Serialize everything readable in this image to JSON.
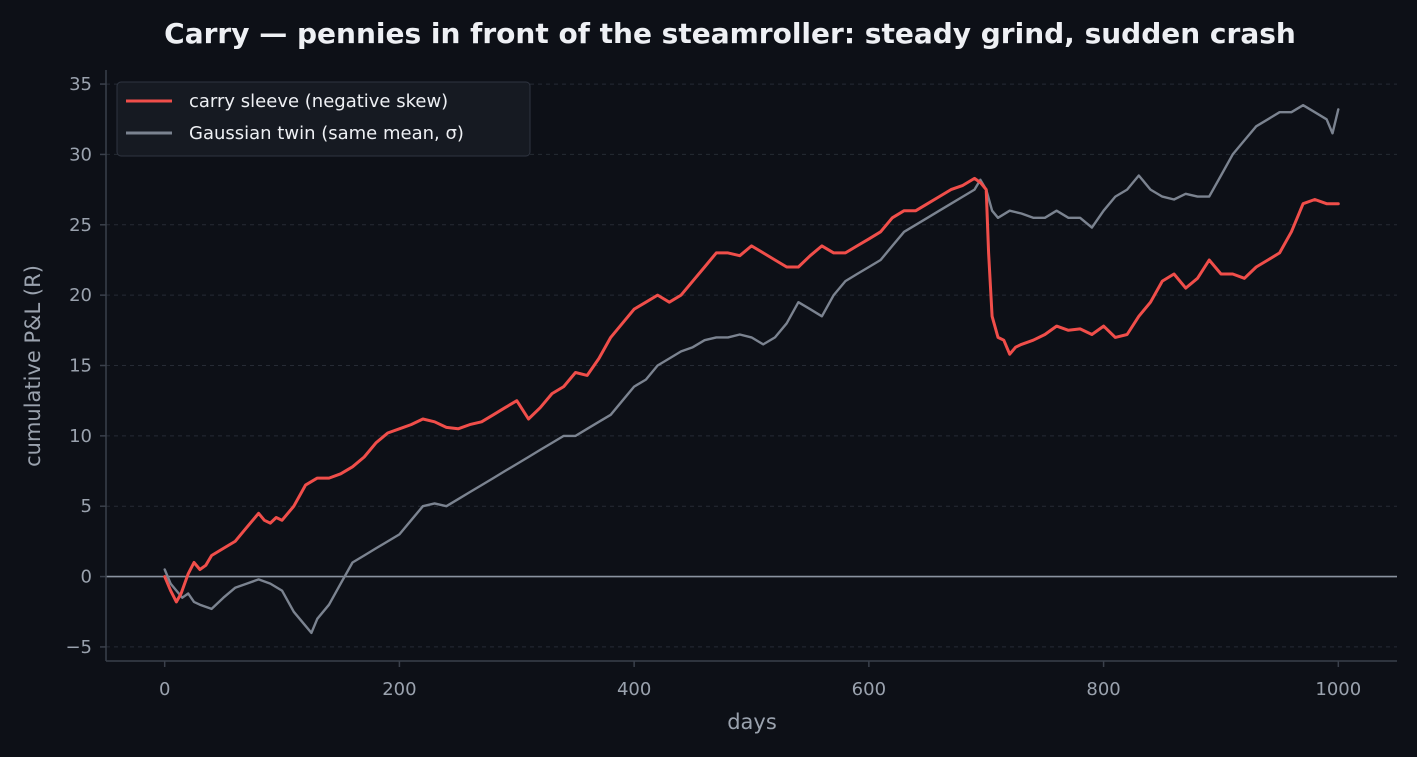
{
  "chart_data": {
    "type": "line",
    "title": "Carry — pennies in front of the steamroller: steady grind, sudden crash",
    "xlabel": "days",
    "ylabel": "cumulative P&L (R)",
    "xlim": [
      -50,
      1050
    ],
    "ylim": [
      -6,
      36
    ],
    "xticks": [
      0,
      200,
      400,
      600,
      800,
      1000
    ],
    "xtick_labels": [
      "0",
      "200",
      "400",
      "600",
      "800",
      "1000"
    ],
    "yticks": [
      -5,
      0,
      5,
      10,
      15,
      20,
      25,
      30,
      35
    ],
    "ytick_labels": [
      "−5",
      "0",
      "5",
      "10",
      "15",
      "20",
      "25",
      "30",
      "35"
    ],
    "grid": "horizontal dashed",
    "zero_line": 0,
    "legend_position": "top-left",
    "series": [
      {
        "name": "carry sleeve (negative skew)",
        "color": "#f04e4a",
        "x": [
          0,
          5,
          10,
          14,
          20,
          25,
          30,
          35,
          40,
          50,
          60,
          70,
          80,
          85,
          90,
          95,
          100,
          110,
          120,
          130,
          140,
          150,
          160,
          170,
          180,
          190,
          200,
          210,
          220,
          230,
          240,
          250,
          260,
          270,
          280,
          290,
          300,
          310,
          320,
          330,
          340,
          350,
          360,
          370,
          380,
          390,
          400,
          410,
          420,
          430,
          440,
          450,
          460,
          470,
          480,
          490,
          500,
          510,
          520,
          530,
          540,
          550,
          560,
          570,
          580,
          590,
          600,
          610,
          620,
          630,
          640,
          650,
          660,
          670,
          680,
          690,
          695,
          700,
          702,
          705,
          710,
          715,
          720,
          725,
          730,
          740,
          750,
          760,
          770,
          780,
          790,
          800,
          810,
          820,
          830,
          840,
          850,
          860,
          870,
          880,
          890,
          900,
          910,
          920,
          930,
          940,
          950,
          960,
          970,
          980,
          990,
          1000
        ],
        "y": [
          0,
          -1.0,
          -1.8,
          -1.2,
          0.2,
          1.0,
          0.5,
          0.8,
          1.5,
          2.0,
          2.5,
          3.5,
          4.5,
          4.0,
          3.8,
          4.2,
          4.0,
          5.0,
          6.5,
          7.0,
          7.0,
          7.3,
          7.8,
          8.5,
          9.5,
          10.2,
          10.5,
          10.8,
          11.2,
          11.0,
          10.6,
          10.5,
          10.8,
          11.0,
          11.5,
          12.0,
          12.5,
          11.2,
          12.0,
          13.0,
          13.5,
          14.5,
          14.3,
          15.5,
          17.0,
          18.0,
          19.0,
          19.5,
          20.0,
          19.5,
          20.0,
          21.0,
          22.0,
          23.0,
          23.0,
          22.8,
          23.5,
          23.0,
          22.5,
          22.0,
          22.0,
          22.8,
          23.5,
          23.0,
          23.0,
          23.5,
          24.0,
          24.5,
          25.5,
          26.0,
          26.0,
          26.5,
          27.0,
          27.5,
          27.8,
          28.3,
          28.0,
          27.5,
          23.0,
          18.5,
          17.0,
          16.8,
          15.8,
          16.3,
          16.5,
          16.8,
          17.2,
          17.8,
          17.5,
          17.6,
          17.2,
          17.8,
          17.0,
          17.2,
          18.5,
          19.5,
          21.0,
          21.5,
          20.5,
          21.2,
          22.5,
          21.5,
          21.5,
          21.2,
          22.0,
          22.5,
          23.0,
          24.5,
          26.5,
          26.8,
          26.5,
          26.5
        ]
      },
      {
        "name": "Gaussian twin (same mean, σ)",
        "color": "#7b8390",
        "x": [
          0,
          5,
          10,
          15,
          20,
          25,
          30,
          40,
          50,
          60,
          70,
          80,
          90,
          100,
          110,
          120,
          125,
          130,
          140,
          150,
          160,
          170,
          180,
          190,
          200,
          210,
          220,
          230,
          240,
          250,
          260,
          270,
          280,
          290,
          300,
          310,
          320,
          330,
          340,
          350,
          360,
          370,
          380,
          390,
          400,
          410,
          420,
          430,
          440,
          450,
          460,
          470,
          480,
          490,
          500,
          510,
          520,
          530,
          540,
          550,
          560,
          570,
          580,
          590,
          600,
          610,
          620,
          630,
          640,
          650,
          660,
          670,
          680,
          690,
          695,
          700,
          705,
          710,
          720,
          730,
          740,
          750,
          760,
          770,
          780,
          790,
          800,
          810,
          820,
          830,
          840,
          850,
          860,
          870,
          880,
          890,
          900,
          910,
          920,
          930,
          940,
          950,
          960,
          970,
          980,
          990,
          995,
          1000
        ],
        "y": [
          0.5,
          -0.5,
          -1.0,
          -1.5,
          -1.2,
          -1.8,
          -2.0,
          -2.3,
          -1.5,
          -0.8,
          -0.5,
          -0.2,
          -0.5,
          -1.0,
          -2.5,
          -3.5,
          -4.0,
          -3.0,
          -2.0,
          -0.5,
          1.0,
          1.5,
          2.0,
          2.5,
          3.0,
          4.0,
          5.0,
          5.2,
          5.0,
          5.5,
          6.0,
          6.5,
          7.0,
          7.5,
          8.0,
          8.5,
          9.0,
          9.5,
          10.0,
          10.0,
          10.5,
          11.0,
          11.5,
          12.5,
          13.5,
          14.0,
          15.0,
          15.5,
          16.0,
          16.3,
          16.8,
          17.0,
          17.0,
          17.2,
          17.0,
          16.5,
          17.0,
          18.0,
          19.5,
          19.0,
          18.5,
          20.0,
          21.0,
          21.5,
          22.0,
          22.5,
          23.5,
          24.5,
          25.0,
          25.5,
          26.0,
          26.5,
          27.0,
          27.5,
          28.2,
          27.5,
          26.0,
          25.5,
          26.0,
          25.8,
          25.5,
          25.5,
          26.0,
          25.5,
          25.5,
          24.8,
          26.0,
          27.0,
          27.5,
          28.5,
          27.5,
          27.0,
          26.8,
          27.2,
          27.0,
          27.0,
          28.5,
          30.0,
          31.0,
          32.0,
          32.5,
          33.0,
          33.0,
          33.5,
          33.0,
          32.5,
          31.5,
          33.2
        ]
      }
    ]
  }
}
